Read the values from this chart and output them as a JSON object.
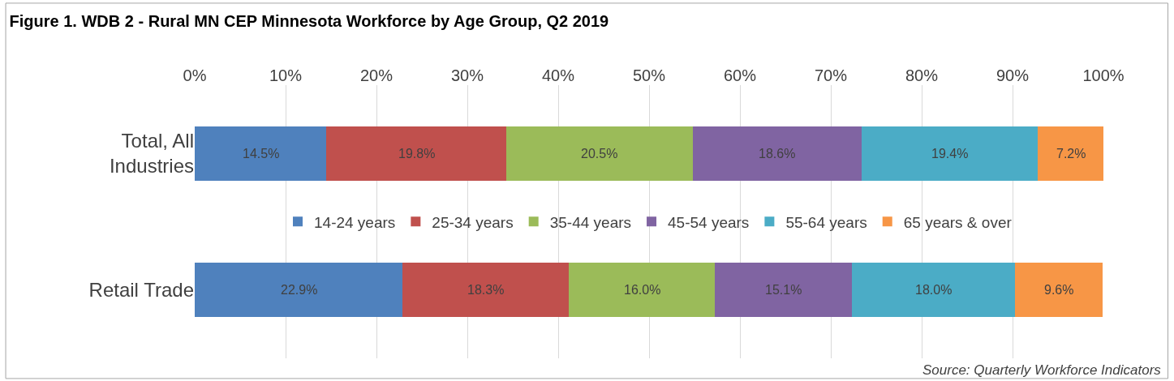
{
  "chart_data": {
    "type": "bar",
    "orientation": "horizontal",
    "stacked": true,
    "title": "Figure 1. WDB 2 - Rural MN CEP Minnesota Workforce by Age Group, Q2 2019",
    "categories": [
      "Total, All Industries",
      "Retail Trade"
    ],
    "series": [
      {
        "name": "14-24 years",
        "color": "#4f81bd",
        "values": [
          14.5,
          22.9
        ],
        "value_labels": [
          "14.5%",
          "22.9%"
        ]
      },
      {
        "name": "25-34 years",
        "color": "#c0504d",
        "values": [
          19.8,
          18.3
        ],
        "value_labels": [
          "19.8%",
          "18.3%"
        ]
      },
      {
        "name": "35-44 years",
        "color": "#9bbb59",
        "values": [
          20.5,
          16.0
        ],
        "value_labels": [
          "20.5%",
          "16.0%"
        ]
      },
      {
        "name": "45-54 years",
        "color": "#8064a2",
        "values": [
          18.6,
          15.1
        ],
        "value_labels": [
          "18.6%",
          "15.1%"
        ]
      },
      {
        "name": "55-64 years",
        "color": "#4bacc6",
        "values": [
          19.4,
          18.0
        ],
        "value_labels": [
          "19.4%",
          "18.0%"
        ]
      },
      {
        "name": "65 years & over",
        "color": "#f79646",
        "values": [
          7.2,
          9.6
        ],
        "value_labels": [
          "7.2%",
          "9.6%"
        ]
      }
    ],
    "xlim": [
      0,
      100
    ],
    "xticks": [
      {
        "value": 0,
        "label": "0%"
      },
      {
        "value": 10,
        "label": "10%"
      },
      {
        "value": 20,
        "label": "20%"
      },
      {
        "value": 30,
        "label": "30%"
      },
      {
        "value": 40,
        "label": "40%"
      },
      {
        "value": 50,
        "label": "50%"
      },
      {
        "value": 60,
        "label": "60%"
      },
      {
        "value": 70,
        "label": "70%"
      },
      {
        "value": 80,
        "label": "80%"
      },
      {
        "value": 90,
        "label": "90%"
      },
      {
        "value": 100,
        "label": "100%"
      }
    ],
    "grid": "x",
    "legend": "center",
    "annotations": [
      "Source: Quarterly Workforce Indicators"
    ]
  }
}
